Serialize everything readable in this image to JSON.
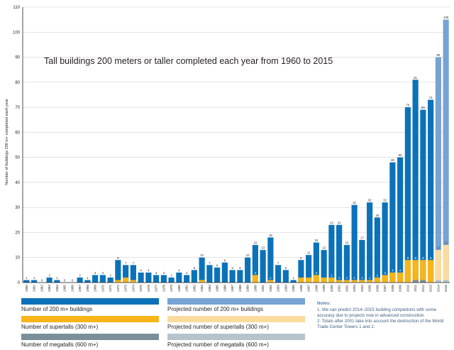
{
  "chart_data": {
    "type": "bar",
    "title": "Tall buildings 200 meters or taller completed each year from 1960 to 2015",
    "ylabel": "Number of buildings 200 m+ completed each year",
    "xlabel": "",
    "ylim": [
      0,
      110
    ],
    "yticks": [
      0,
      10,
      20,
      30,
      40,
      50,
      60,
      70,
      80,
      90,
      100,
      110
    ],
    "grid": true,
    "categories": [
      "1960",
      "1961",
      "1962",
      "1963",
      "1964",
      "1965",
      "1966",
      "1967",
      "1968",
      "1969",
      "1970",
      "1971",
      "1972",
      "1973",
      "1974",
      "1975",
      "1976",
      "1977",
      "1978",
      "1979",
      "1980",
      "1981",
      "1982",
      "1983",
      "1984",
      "1985",
      "1986",
      "1987",
      "1988",
      "1989",
      "1990",
      "1991",
      "1992",
      "1993",
      "1994",
      "1995",
      "1996",
      "1997",
      "1998",
      "1999",
      "2000",
      "2001",
      "2002",
      "2003",
      "2004",
      "2005",
      "2006",
      "2007",
      "2008",
      "2009",
      "2010",
      "2011",
      "2012",
      "2013",
      "2014",
      "2015"
    ],
    "series": [
      {
        "name": "Number of 200 m+ buildings",
        "color": "#0b72b9",
        "values": [
          1,
          1,
          0,
          2,
          1,
          0,
          0,
          2,
          1,
          3,
          3,
          2,
          9,
          7,
          7,
          4,
          4,
          3,
          3,
          2,
          4,
          3,
          5,
          10,
          7,
          6,
          8,
          5,
          5,
          10,
          15,
          13,
          18,
          7,
          5,
          1,
          9,
          11,
          16,
          13,
          23,
          23,
          15,
          31,
          17,
          32,
          26,
          32,
          48,
          50,
          70,
          81,
          69,
          73,
          null,
          null
        ]
      },
      {
        "name": "Number of supertalls (300 m+)",
        "color": "#f7b519",
        "values": [
          0,
          0,
          0,
          0,
          0,
          0,
          0,
          0,
          0,
          0,
          0,
          0,
          1,
          2,
          1,
          0,
          0,
          0,
          0,
          0,
          0,
          0,
          0,
          1,
          0,
          0,
          0,
          0,
          0,
          0,
          3,
          0,
          1,
          0,
          0,
          0,
          2,
          2,
          3,
          2,
          2,
          1,
          1,
          1,
          1,
          1,
          2,
          3,
          4,
          4,
          9,
          9,
          9,
          9,
          null,
          null
        ]
      },
      {
        "name": "Number of megatalls (600 m+)",
        "color": "#7a8f99",
        "values": [
          0,
          0,
          0,
          0,
          0,
          0,
          0,
          0,
          0,
          0,
          0,
          0,
          0,
          0,
          0,
          0,
          0,
          0,
          0,
          0,
          0,
          0,
          0,
          0,
          0,
          0,
          0,
          0,
          0,
          0,
          0,
          0,
          0,
          0,
          0,
          0,
          0,
          0,
          0,
          0,
          0,
          0,
          0,
          0,
          0,
          0,
          0,
          0,
          0,
          0,
          0,
          1,
          1,
          0,
          null,
          null
        ]
      },
      {
        "name": "Projected number of 200 m+ buildings",
        "color": "#77a3d4",
        "values": [
          null,
          null,
          null,
          null,
          null,
          null,
          null,
          null,
          null,
          null,
          null,
          null,
          null,
          null,
          null,
          null,
          null,
          null,
          null,
          null,
          null,
          null,
          null,
          null,
          null,
          null,
          null,
          null,
          null,
          null,
          null,
          null,
          null,
          null,
          null,
          null,
          null,
          null,
          null,
          null,
          null,
          null,
          null,
          null,
          null,
          null,
          null,
          null,
          null,
          null,
          null,
          null,
          null,
          null,
          90,
          105
        ]
      },
      {
        "name": "Projected number of supertalls (300 m+)",
        "color": "#fbdc9f",
        "values": [
          null,
          null,
          null,
          null,
          null,
          null,
          null,
          null,
          null,
          null,
          null,
          null,
          null,
          null,
          null,
          null,
          null,
          null,
          null,
          null,
          null,
          null,
          null,
          null,
          null,
          null,
          null,
          null,
          null,
          null,
          null,
          null,
          null,
          null,
          null,
          null,
          null,
          null,
          null,
          null,
          null,
          null,
          null,
          null,
          null,
          null,
          null,
          null,
          null,
          null,
          null,
          null,
          null,
          null,
          13,
          15
        ]
      },
      {
        "name": "Projected number of megatalls (600 m+)",
        "color": "#b5c3cb",
        "values": [
          null,
          null,
          null,
          null,
          null,
          null,
          null,
          null,
          null,
          null,
          null,
          null,
          null,
          null,
          null,
          null,
          null,
          null,
          null,
          null,
          null,
          null,
          null,
          null,
          null,
          null,
          null,
          null,
          null,
          null,
          null,
          null,
          null,
          null,
          null,
          null,
          null,
          null,
          null,
          null,
          null,
          null,
          null,
          null,
          null,
          null,
          null,
          null,
          null,
          null,
          null,
          null,
          null,
          null,
          1,
          1
        ]
      }
    ],
    "legend": [
      {
        "label": "Number of 200 m+ buildings",
        "color": "#0b72b9"
      },
      {
        "label": "Number of supertalls (300 m+)",
        "color": "#f7b519"
      },
      {
        "label": "Number of megatalls (600 m+)",
        "color": "#7a8f99"
      },
      {
        "label": "Projected number of 200 m+ buildings",
        "color": "#77a3d4"
      },
      {
        "label": "Projected number of supertalls (300 m+)",
        "color": "#fbdc9f"
      },
      {
        "label": "Projected number of megatalls (600 m+)",
        "color": "#b5c3cb"
      }
    ],
    "legend_placement": "bottom"
  },
  "notes": {
    "header": "Notes:",
    "items": [
      "1. We can predict 2014–2015 building completions with some accuracy due to projects now in advanced construction.",
      "2. Totals after 2001 take into account the destruction of the World Trade Center Towers 1 and 2."
    ]
  }
}
